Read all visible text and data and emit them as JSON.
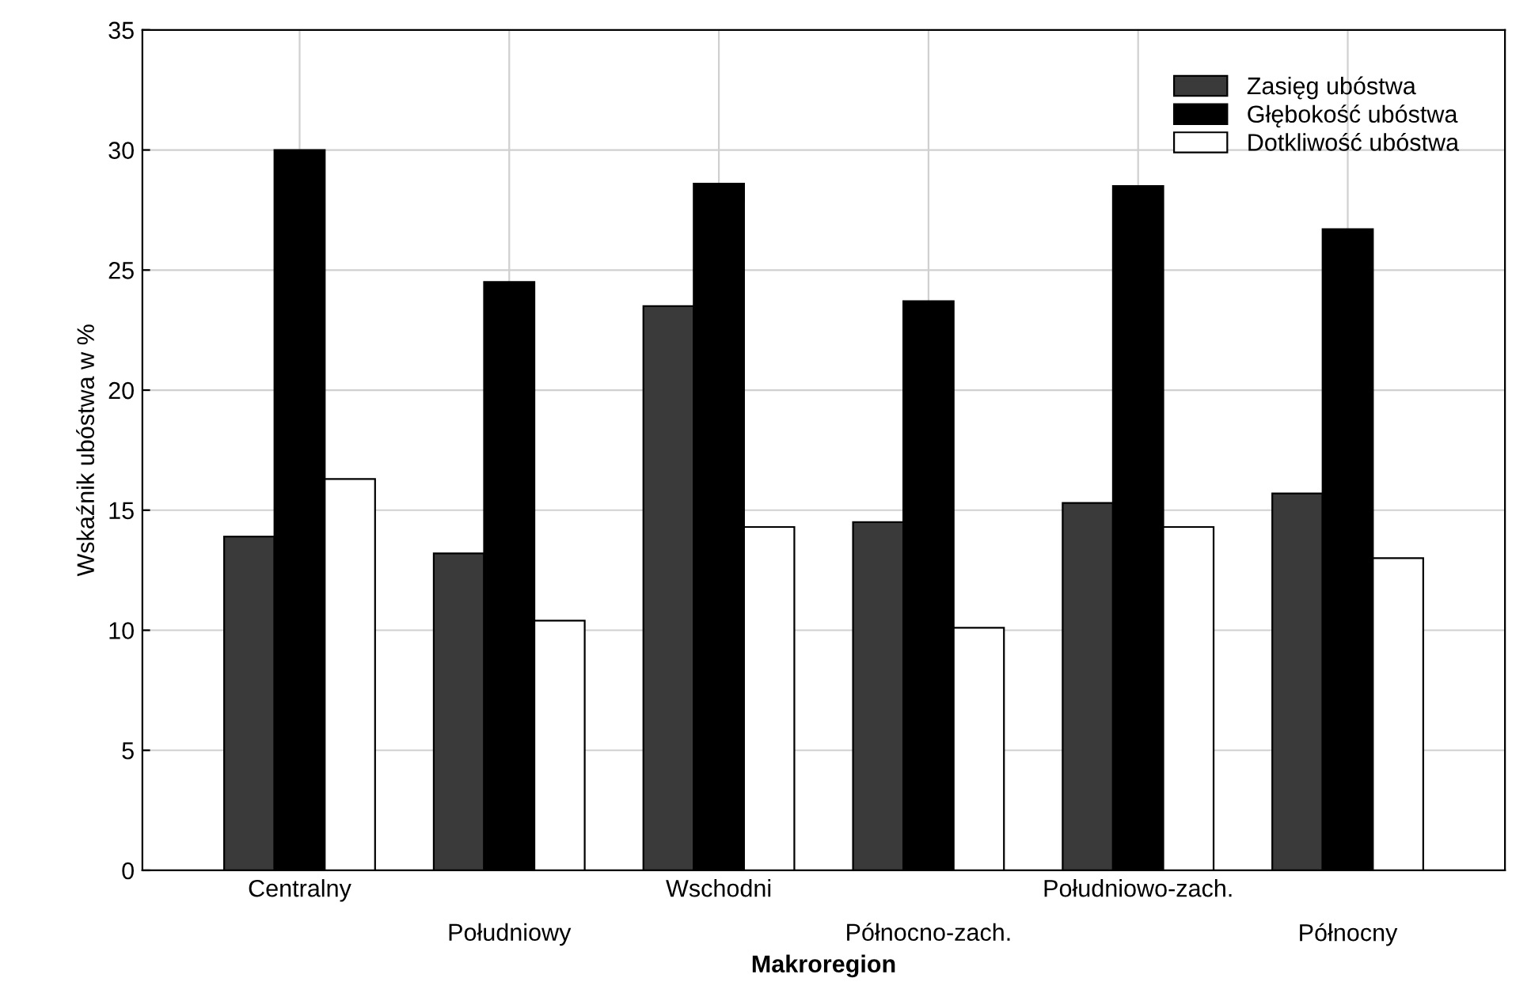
{
  "chart_data": {
    "type": "bar",
    "xlabel": "Makroregion",
    "ylabel": "Wskaźnik ubóstwa w %",
    "categories": [
      "Centralny",
      "Południowy",
      "Wschodni",
      "Północno-zach.",
      "Południowo-zach.",
      "Północny"
    ],
    "series": [
      {
        "name": "Zasięg ubóstwa",
        "color": "#3a3a3a",
        "values": [
          13.9,
          13.2,
          23.5,
          14.5,
          15.3,
          15.7
        ]
      },
      {
        "name": "Głębokość ubóstwa",
        "color": "#000000",
        "values": [
          30.0,
          24.5,
          28.6,
          23.7,
          28.5,
          26.7
        ]
      },
      {
        "name": "Dotkliwość ubóstwa",
        "color": "#ffffff",
        "values": [
          16.3,
          10.4,
          14.3,
          10.1,
          14.3,
          13.0
        ]
      }
    ],
    "ylim": [
      0,
      35
    ],
    "yticks": [
      0,
      5,
      10,
      15,
      20,
      25,
      30,
      35
    ],
    "grid": true,
    "legend": "top right"
  }
}
